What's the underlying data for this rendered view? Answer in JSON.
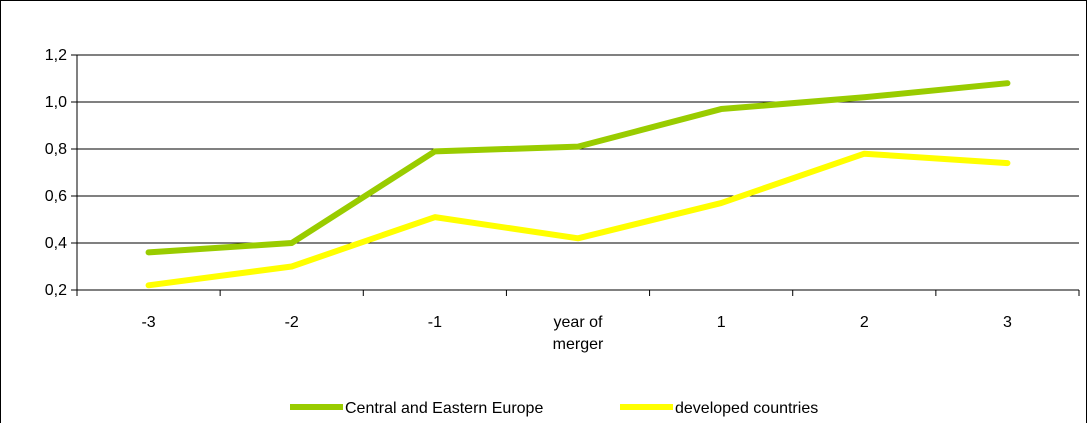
{
  "chart_data": {
    "type": "line",
    "title": "",
    "xlabel": "",
    "ylabel": "",
    "categories": [
      "-3",
      "-2",
      "-1",
      "year of merger",
      "1",
      "2",
      "3"
    ],
    "series": [
      {
        "name": "Central and Eastern Europe",
        "color": "#99cc00",
        "values": [
          0.36,
          0.4,
          0.79,
          0.81,
          0.97,
          1.02,
          1.08
        ]
      },
      {
        "name": "developed countries",
        "color": "#ffff00",
        "values": [
          0.22,
          0.3,
          0.51,
          0.42,
          0.57,
          0.78,
          0.74
        ]
      }
    ],
    "ylim": [
      0.2,
      1.2
    ],
    "yticks": [
      "0,2",
      "0,4",
      "0,6",
      "0,8",
      "1,0",
      "1,2"
    ],
    "grid": true,
    "legend": "bottom"
  }
}
